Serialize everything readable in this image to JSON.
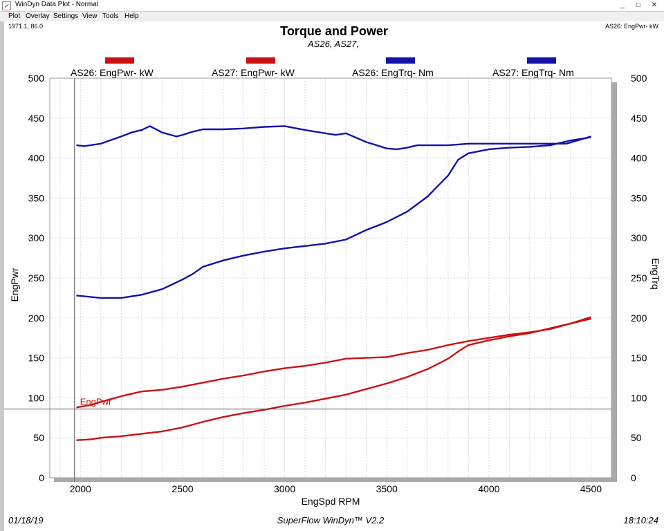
{
  "window": {
    "title": "WinDyn Data Plot - Normal",
    "minimize": "_",
    "maximize": "□",
    "close": "✕"
  },
  "menu": [
    "Plot",
    "Overlay",
    "Settings",
    "View",
    "Tools",
    "Help"
  ],
  "readouts": {
    "cursor": "1971.1, 86.0",
    "series_info": "AS26: EngPwr-  kW"
  },
  "cursor_label": "EngPwr",
  "footer": {
    "date": "01/18/19",
    "software": "SuperFlow WinDyn™ V2.2",
    "time": "18:10:24"
  },
  "colors": {
    "power": "#cc1111",
    "torque": "#1111aa",
    "cursor": "#555555",
    "grid": "#d8d8d8"
  },
  "chart_data": {
    "type": "line",
    "title": "Torque and Power",
    "subtitle": "AS26, AS27,",
    "xlabel": "EngSpd  RPM",
    "ylabel_left": "EngPwr",
    "ylabel_right": "EngTrq",
    "xlim": [
      1850,
      4600
    ],
    "ylim": [
      0,
      500
    ],
    "x_ticks": [
      2000,
      2500,
      3000,
      3500,
      4000,
      4500
    ],
    "y_ticks": [
      0,
      50,
      100,
      150,
      200,
      250,
      300,
      350,
      400,
      450,
      500
    ],
    "cursor": {
      "x": 1971.1,
      "y": 86.0
    },
    "legend": [
      {
        "label": "AS26: EngPwr-  kW",
        "color": "#cc1111"
      },
      {
        "label": "AS27: EngPwr-  kW",
        "color": "#cc1111"
      },
      {
        "label": "AS26: EngTrq-  Nm",
        "color": "#1111aa"
      },
      {
        "label": "AS27: EngTrq-  Nm",
        "color": "#1111aa"
      }
    ],
    "series": [
      {
        "name": "AS26: EngTrq-  Nm",
        "color": "#1111aa",
        "x": [
          1980,
          2020,
          2100,
          2200,
          2250,
          2300,
          2340,
          2400,
          2470,
          2500,
          2550,
          2600,
          2700,
          2800,
          2900,
          3000,
          3100,
          3200,
          3250,
          3300,
          3400,
          3500,
          3550,
          3600,
          3650,
          3700,
          3800,
          3900,
          4000,
          4100,
          4200,
          4300,
          4380,
          4500
        ],
        "values": [
          416,
          415,
          418,
          427,
          432,
          435,
          440,
          432,
          427,
          429,
          433,
          436,
          436,
          437,
          439,
          440,
          435,
          431,
          429,
          431,
          420,
          412,
          411,
          413,
          416,
          416,
          416,
          418,
          418,
          418,
          418,
          418,
          418,
          427
        ]
      },
      {
        "name": "AS27: EngTrq-  Nm",
        "color": "#1111aa",
        "x": [
          1980,
          2020,
          2100,
          2200,
          2300,
          2400,
          2500,
          2550,
          2600,
          2700,
          2800,
          2900,
          3000,
          3100,
          3200,
          3300,
          3400,
          3500,
          3600,
          3700,
          3800,
          3850,
          3900,
          4000,
          4100,
          4200,
          4300,
          4400,
          4500
        ],
        "values": [
          228,
          227,
          225,
          225,
          229,
          236,
          248,
          255,
          264,
          272,
          278,
          283,
          287,
          290,
          293,
          298,
          310,
          320,
          333,
          352,
          378,
          398,
          406,
          411,
          413,
          414,
          416,
          422,
          426
        ]
      },
      {
        "name": "AS26: EngPwr-  kW",
        "color": "#cc1111",
        "x": [
          1980,
          2050,
          2100,
          2200,
          2300,
          2400,
          2500,
          2600,
          2700,
          2800,
          2900,
          3000,
          3100,
          3200,
          3300,
          3400,
          3500,
          3600,
          3700,
          3800,
          3900,
          4000,
          4100,
          4200,
          4300,
          4400,
          4500
        ],
        "values": [
          88,
          91,
          95,
          102,
          108,
          110,
          114,
          119,
          124,
          128,
          133,
          137,
          140,
          144,
          149,
          150,
          151,
          156,
          160,
          166,
          171,
          175,
          179,
          182,
          186,
          193,
          201
        ]
      },
      {
        "name": "AS27: EngPwr-  kW",
        "color": "#cc1111",
        "x": [
          1980,
          2050,
          2100,
          2200,
          2300,
          2400,
          2500,
          2600,
          2700,
          2800,
          2900,
          3000,
          3100,
          3200,
          3300,
          3400,
          3500,
          3600,
          3700,
          3800,
          3850,
          3900,
          4000,
          4100,
          4200,
          4300,
          4400,
          4500
        ],
        "values": [
          47,
          48,
          50,
          52,
          55,
          58,
          63,
          70,
          76,
          81,
          85,
          90,
          94,
          99,
          104,
          111,
          118,
          126,
          136,
          149,
          158,
          166,
          172,
          177,
          181,
          187,
          193,
          199
        ]
      }
    ]
  }
}
